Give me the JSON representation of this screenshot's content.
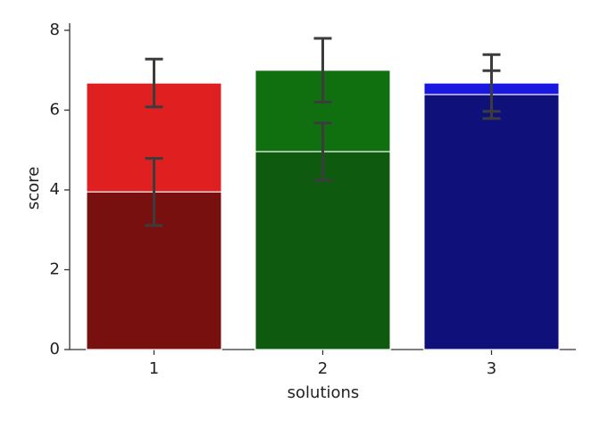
{
  "chart_data": {
    "type": "bar",
    "x_label": "solutions",
    "y_label": "score",
    "categories": [
      "1",
      "2",
      "3"
    ],
    "series": [
      {
        "colors": [
          "#e02020",
          "#107010",
          "#1818e0"
        ],
        "values": [
          6.68,
          7.0,
          6.68
        ],
        "errors": [
          0.6,
          0.8,
          0.71
        ]
      },
      {
        "colors": [
          "#781010",
          "#0e5a0e",
          "#10107a"
        ],
        "values": [
          3.95,
          4.96,
          6.39
        ],
        "errors": [
          0.84,
          0.72,
          0.6
        ]
      }
    ],
    "ylim": [
      0,
      8
    ],
    "yticks": [
      0,
      2,
      4,
      6,
      8
    ],
    "grid": false
  }
}
